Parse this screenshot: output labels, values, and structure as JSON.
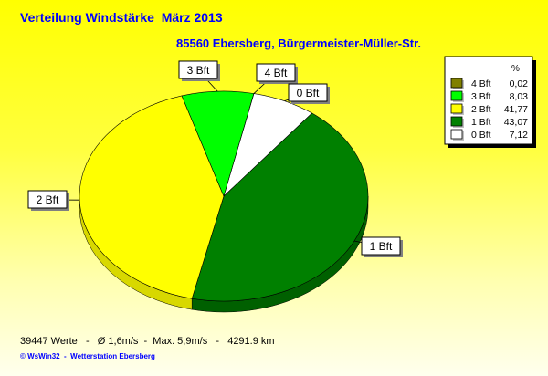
{
  "chart_data": {
    "type": "pie",
    "title": "Verteilung Windstärke  März 2013",
    "subtitle": "85560 Ebersberg, Bürgermeister-Müller-Str.",
    "legend_header": "%",
    "legend_placement": "top-right",
    "slices": [
      {
        "label": "4 Bft",
        "value": 0.02,
        "value_text": "0,02",
        "color": "#808000"
      },
      {
        "label": "0 Bft",
        "value": 7.12,
        "value_text": "7,12",
        "color": "#ffffff"
      },
      {
        "label": "1 Bft",
        "value": 43.07,
        "value_text": "43,07",
        "color": "#008000"
      },
      {
        "label": "2 Bft",
        "value": 41.77,
        "value_text": "41,77",
        "color": "#ffff00"
      },
      {
        "label": "3 Bft",
        "value": 8.03,
        "value_text": "8,03",
        "color": "#00ff00"
      }
    ],
    "legend_order": [
      "4 Bft",
      "3 Bft",
      "2 Bft",
      "1 Bft",
      "0 Bft"
    ]
  },
  "footer": {
    "stats": "39447 Werte   -   Ø 1,6m/s  -  Max. 5,9m/s   -   4291.9 km",
    "credit": "© WsWin32  -  Wetterstation Ebersberg"
  }
}
